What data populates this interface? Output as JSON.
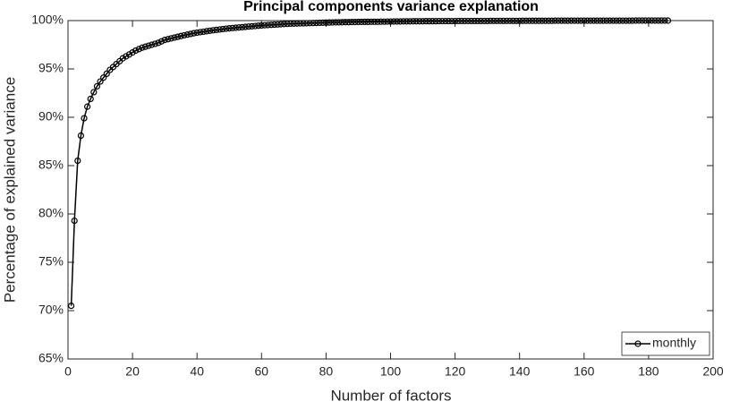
{
  "chart_data": {
    "type": "line",
    "title": "Principal components variance explanation",
    "xlabel": "Number of factors",
    "ylabel": "Percentage of explained variance",
    "x": [
      1,
      2,
      3,
      4,
      5,
      6,
      7,
      8,
      9,
      10,
      11,
      12,
      13,
      14,
      15,
      16,
      17,
      18,
      19,
      20,
      21,
      22,
      23,
      24,
      25,
      26,
      27,
      28,
      29,
      30,
      31,
      32,
      33,
      34,
      35,
      36,
      37,
      38,
      39,
      40,
      41,
      42,
      43,
      44,
      45,
      46,
      47,
      48,
      49,
      50,
      51,
      52,
      53,
      54,
      55,
      56,
      57,
      58,
      59,
      60,
      61,
      62,
      63,
      64,
      65,
      66,
      67,
      68,
      69,
      70,
      71,
      72,
      73,
      74,
      75,
      76,
      77,
      78,
      79,
      80,
      81,
      82,
      83,
      84,
      85,
      86,
      87,
      88,
      89,
      90,
      91,
      92,
      93,
      94,
      95,
      96,
      97,
      98,
      99,
      100,
      101,
      102,
      103,
      104,
      105,
      106,
      107,
      108,
      109,
      110,
      111,
      112,
      113,
      114,
      115,
      116,
      117,
      118,
      119,
      120,
      121,
      122,
      123,
      124,
      125,
      126,
      127,
      128,
      129,
      130,
      131,
      132,
      133,
      134,
      135,
      136,
      137,
      138,
      139,
      140,
      141,
      142,
      143,
      144,
      145,
      146,
      147,
      148,
      149,
      150,
      151,
      152,
      153,
      154,
      155,
      156,
      157,
      158,
      159,
      160,
      161,
      162,
      163,
      164,
      165,
      166,
      167,
      168,
      169,
      170,
      171,
      172,
      173,
      174,
      175,
      176,
      177,
      178,
      179,
      180,
      181,
      182,
      183,
      184,
      185,
      186
    ],
    "series": [
      {
        "name": "monthly",
        "color": "#000000",
        "values": [
          70.5,
          79.3,
          85.5,
          88.1,
          89.9,
          91.1,
          91.9,
          92.6,
          93.2,
          93.7,
          94.1,
          94.5,
          94.9,
          95.2,
          95.5,
          95.8,
          96.1,
          96.3,
          96.5,
          96.7,
          96.9,
          97.05,
          97.2,
          97.3,
          97.4,
          97.5,
          97.6,
          97.7,
          97.85,
          98.0,
          98.08,
          98.16,
          98.24,
          98.32,
          98.4,
          98.48,
          98.55,
          98.62,
          98.69,
          98.75,
          98.8,
          98.85,
          98.9,
          98.95,
          99.0,
          99.04,
          99.08,
          99.12,
          99.16,
          99.2,
          99.23,
          99.26,
          99.29,
          99.32,
          99.35,
          99.38,
          99.41,
          99.44,
          99.47,
          99.5,
          99.52,
          99.54,
          99.56,
          99.58,
          99.6,
          99.62,
          99.64,
          99.66,
          99.68,
          99.69,
          99.7,
          99.71,
          99.72,
          99.73,
          99.74,
          99.75,
          99.76,
          99.77,
          99.78,
          99.79,
          99.8,
          99.81,
          99.82,
          99.82,
          99.83,
          99.84,
          99.84,
          99.85,
          99.85,
          99.86,
          99.86,
          99.87,
          99.87,
          99.88,
          99.88,
          99.88,
          99.89,
          99.89,
          99.9,
          99.9,
          99.91,
          99.91,
          99.91,
          99.92,
          99.92,
          99.92,
          99.93,
          99.93,
          99.93,
          99.93,
          99.94,
          99.94,
          99.94,
          99.94,
          99.95,
          99.95,
          99.95,
          99.95,
          99.95,
          99.95,
          99.96,
          99.96,
          99.96,
          99.96,
          99.96,
          99.96,
          99.96,
          99.96,
          99.96,
          99.96,
          99.97,
          99.97,
          99.97,
          99.97,
          99.97,
          99.97,
          99.97,
          99.97,
          99.97,
          99.97,
          99.98,
          99.98,
          99.98,
          99.98,
          99.98,
          99.98,
          99.98,
          99.98,
          99.98,
          99.98,
          99.99,
          99.99,
          99.99,
          99.99,
          99.99,
          99.99,
          99.99,
          99.99,
          99.99,
          99.99,
          99.99,
          99.99,
          99.99,
          99.99,
          99.99,
          99.99,
          99.99,
          99.99,
          99.99,
          99.99,
          99.99,
          99.99,
          99.99,
          99.99,
          99.99,
          100,
          100,
          100,
          100,
          100,
          100,
          100,
          100,
          100,
          100,
          100
        ]
      }
    ],
    "xlim": [
      0,
      200
    ],
    "xticks": [
      0,
      20,
      40,
      60,
      80,
      100,
      120,
      140,
      160,
      180,
      200
    ],
    "ylim": [
      65,
      100
    ],
    "yticks": [
      {
        "value": 65,
        "label": "65%"
      },
      {
        "value": 70,
        "label": "70%"
      },
      {
        "value": 75,
        "label": "75%"
      },
      {
        "value": 80,
        "label": "80%"
      },
      {
        "value": 85,
        "label": "85%"
      },
      {
        "value": 90,
        "label": "90%"
      },
      {
        "value": 95,
        "label": "95%"
      },
      {
        "value": 100,
        "label": "100%"
      }
    ],
    "grid": false,
    "legend": "southeast"
  }
}
